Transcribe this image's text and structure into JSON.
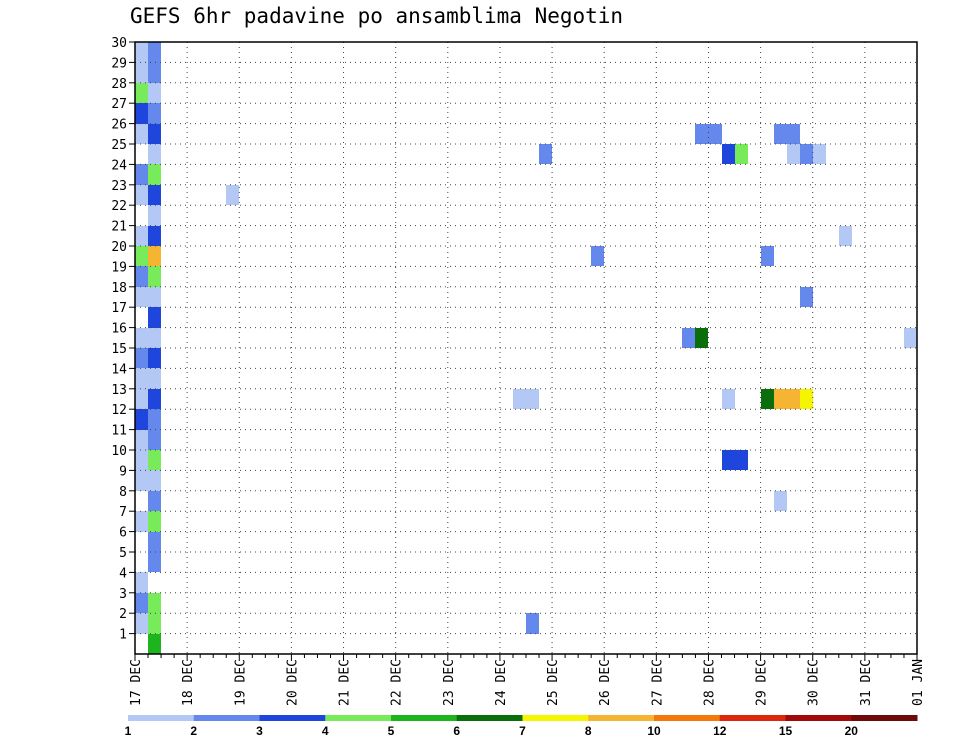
{
  "title": "GEFS 6hr padavine po ansamblima Negotin",
  "chart_data": {
    "type": "heatmap",
    "title": "GEFS 6hr padavine po ansamblima Negotin",
    "x_tick_labels": [
      "17 DEC",
      "18 DEC",
      "19 DEC",
      "20 DEC",
      "21 DEC",
      "22 DEC",
      "23 DEC",
      "24 DEC",
      "25 DEC",
      "26 DEC",
      "27 DEC",
      "28 DEC",
      "29 DEC",
      "30 DEC",
      "31 DEC",
      "01 JAN"
    ],
    "y_tick_labels": [
      "1",
      "2",
      "3",
      "4",
      "5",
      "6",
      "7",
      "8",
      "9",
      "10",
      "11",
      "12",
      "13",
      "14",
      "15",
      "16",
      "17",
      "18",
      "19",
      "20",
      "21",
      "22",
      "23",
      "24",
      "25",
      "26",
      "27",
      "28",
      "29",
      "30"
    ],
    "ylim": [
      0,
      30
    ],
    "grid": true,
    "x_unit": "days since 17 DEC (6-hourly steps)",
    "colorbar": {
      "levels": [
        1,
        2,
        3,
        4,
        5,
        6,
        7,
        8,
        10,
        12,
        15,
        20
      ],
      "colors": [
        "#b4c8f5",
        "#6488eb",
        "#1e46dc",
        "#78eb5a",
        "#1eb41e",
        "#0a6e0a",
        "#f5f500",
        "#f5b432",
        "#f5780a",
        "#dc280a",
        "#a00a0a",
        "#6e0a0a"
      ]
    },
    "cells": [
      {
        "x": 0.0,
        "y": 30,
        "v": 1.5
      },
      {
        "x": 0.25,
        "y": 30,
        "v": 2.5
      },
      {
        "x": 0.0,
        "y": 29,
        "v": 1.5
      },
      {
        "x": 0.25,
        "y": 29,
        "v": 2.5
      },
      {
        "x": 0.0,
        "y": 28,
        "v": 4.5
      },
      {
        "x": 0.25,
        "y": 28,
        "v": 1.5
      },
      {
        "x": 0.0,
        "y": 27,
        "v": 3.5
      },
      {
        "x": 0.25,
        "y": 27,
        "v": 2.5
      },
      {
        "x": 0.0,
        "y": 26,
        "v": 1.5
      },
      {
        "x": 0.25,
        "y": 26,
        "v": 3.5
      },
      {
        "x": 0.25,
        "y": 25,
        "v": 1.5
      },
      {
        "x": 0.0,
        "y": 24,
        "v": 2.5
      },
      {
        "x": 0.25,
        "y": 24,
        "v": 4.5
      },
      {
        "x": 0.0,
        "y": 23,
        "v": 1.5
      },
      {
        "x": 0.25,
        "y": 23,
        "v": 3.5
      },
      {
        "x": 0.25,
        "y": 22,
        "v": 1.5
      },
      {
        "x": 0.0,
        "y": 21,
        "v": 1.5
      },
      {
        "x": 0.25,
        "y": 21,
        "v": 3.5
      },
      {
        "x": 0.0,
        "y": 20,
        "v": 4.5
      },
      {
        "x": 0.25,
        "y": 20,
        "v": 9.0
      },
      {
        "x": 0.0,
        "y": 19,
        "v": 2.5
      },
      {
        "x": 0.25,
        "y": 19,
        "v": 4.5
      },
      {
        "x": 0.0,
        "y": 18,
        "v": 1.5
      },
      {
        "x": 0.25,
        "y": 18,
        "v": 1.5
      },
      {
        "x": 0.25,
        "y": 17,
        "v": 3.5
      },
      {
        "x": 0.0,
        "y": 16,
        "v": 1.5
      },
      {
        "x": 0.25,
        "y": 16,
        "v": 1.5
      },
      {
        "x": 0.0,
        "y": 15,
        "v": 2.5
      },
      {
        "x": 0.25,
        "y": 15,
        "v": 3.5
      },
      {
        "x": 0.0,
        "y": 14,
        "v": 1.5
      },
      {
        "x": 0.25,
        "y": 14,
        "v": 1.5
      },
      {
        "x": 0.0,
        "y": 13,
        "v": 1.5
      },
      {
        "x": 0.25,
        "y": 13,
        "v": 3.5
      },
      {
        "x": 0.0,
        "y": 12,
        "v": 3.5
      },
      {
        "x": 0.25,
        "y": 12,
        "v": 2.5
      },
      {
        "x": 0.0,
        "y": 11,
        "v": 1.5
      },
      {
        "x": 0.25,
        "y": 11,
        "v": 2.5
      },
      {
        "x": 0.0,
        "y": 10,
        "v": 1.5
      },
      {
        "x": 0.25,
        "y": 10,
        "v": 4.5
      },
      {
        "x": 0.0,
        "y": 9,
        "v": 1.5
      },
      {
        "x": 0.25,
        "y": 9,
        "v": 1.5
      },
      {
        "x": 0.25,
        "y": 8,
        "v": 2.5
      },
      {
        "x": 0.0,
        "y": 7,
        "v": 1.5
      },
      {
        "x": 0.25,
        "y": 7,
        "v": 4.5
      },
      {
        "x": 0.25,
        "y": 6,
        "v": 2.5
      },
      {
        "x": 0.25,
        "y": 5,
        "v": 2.5
      },
      {
        "x": 0.0,
        "y": 4,
        "v": 1.5
      },
      {
        "x": 0.0,
        "y": 3,
        "v": 2.5
      },
      {
        "x": 0.25,
        "y": 3,
        "v": 4.5
      },
      {
        "x": 0.0,
        "y": 2,
        "v": 1.5
      },
      {
        "x": 0.25,
        "y": 2,
        "v": 4.5
      },
      {
        "x": 0.25,
        "y": 1,
        "v": 5.5
      },
      {
        "x": 1.75,
        "y": 23,
        "v": 1.5
      },
      {
        "x": 7.75,
        "y": 25,
        "v": 2.5
      },
      {
        "x": 7.25,
        "y": 13,
        "v": 1.5
      },
      {
        "x": 7.5,
        "y": 13,
        "v": 1.5
      },
      {
        "x": 7.5,
        "y": 2,
        "v": 2.5
      },
      {
        "x": 8.75,
        "y": 20,
        "v": 2.5
      },
      {
        "x": 10.5,
        "y": 16,
        "v": 2.5
      },
      {
        "x": 10.75,
        "y": 16,
        "v": 6.5
      },
      {
        "x": 10.75,
        "y": 26,
        "v": 2.5
      },
      {
        "x": 11.0,
        "y": 26,
        "v": 2.5
      },
      {
        "x": 11.25,
        "y": 25,
        "v": 3.5
      },
      {
        "x": 11.5,
        "y": 25,
        "v": 4.5
      },
      {
        "x": 11.25,
        "y": 13,
        "v": 1.5
      },
      {
        "x": 11.25,
        "y": 10,
        "v": 3.5
      },
      {
        "x": 11.5,
        "y": 10,
        "v": 3.5
      },
      {
        "x": 12.0,
        "y": 20,
        "v": 2.5
      },
      {
        "x": 12.0,
        "y": 13,
        "v": 6.5
      },
      {
        "x": 12.25,
        "y": 13,
        "v": 9.0
      },
      {
        "x": 12.5,
        "y": 13,
        "v": 9.0
      },
      {
        "x": 12.75,
        "y": 13,
        "v": 7.5
      },
      {
        "x": 12.25,
        "y": 8,
        "v": 1.5
      },
      {
        "x": 12.25,
        "y": 26,
        "v": 2.5
      },
      {
        "x": 12.5,
        "y": 26,
        "v": 2.5
      },
      {
        "x": 12.5,
        "y": 25,
        "v": 1.5
      },
      {
        "x": 12.75,
        "y": 25,
        "v": 2.5
      },
      {
        "x": 13.0,
        "y": 25,
        "v": 1.5
      },
      {
        "x": 12.75,
        "y": 18,
        "v": 2.5
      },
      {
        "x": 13.5,
        "y": 21,
        "v": 1.5
      },
      {
        "x": 14.75,
        "y": 16,
        "v": 1.5
      }
    ]
  }
}
